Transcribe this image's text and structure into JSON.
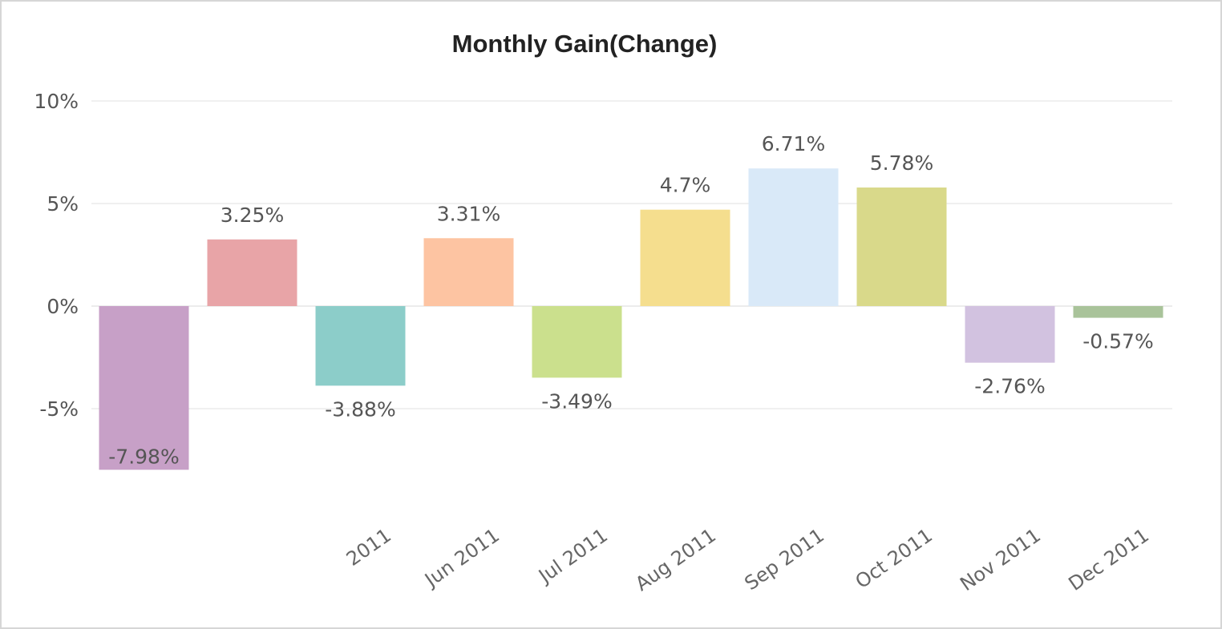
{
  "chart_data": {
    "type": "bar",
    "title": "Monthly Gain(Change)",
    "xlabel": "",
    "ylabel": "",
    "ylim": [
      -7.98,
      10
    ],
    "yticks": [
      {
        "value": 10,
        "label": "10%"
      },
      {
        "value": 5,
        "label": "5%"
      },
      {
        "value": 0,
        "label": "0%"
      },
      {
        "value": -5,
        "label": "-5%"
      }
    ],
    "grid": true,
    "legend": "none",
    "categories": [
      "",
      "",
      "2011",
      "Jun 2011",
      "Jul 2011",
      "Aug 2011",
      "Sep 2011",
      "Oct 2011",
      "Nov 2011",
      "Dec 2011"
    ],
    "values": [
      -7.98,
      3.25,
      -3.88,
      3.31,
      -3.49,
      4.7,
      6.71,
      5.78,
      -2.76,
      -0.57
    ],
    "data_labels": [
      "-7.98%",
      "3.25%",
      "-3.88%",
      "3.31%",
      "-3.49%",
      "4.7%",
      "6.71%",
      "5.78%",
      "-2.76%",
      "-0.57%"
    ],
    "colors": [
      "#c7a0c7",
      "#e8a4a7",
      "#8ccdc9",
      "#fdc4a2",
      "#cbe08d",
      "#f5de8e",
      "#d9e9f8",
      "#d9d98a",
      "#d2c2e0",
      "#a9c39a"
    ]
  }
}
